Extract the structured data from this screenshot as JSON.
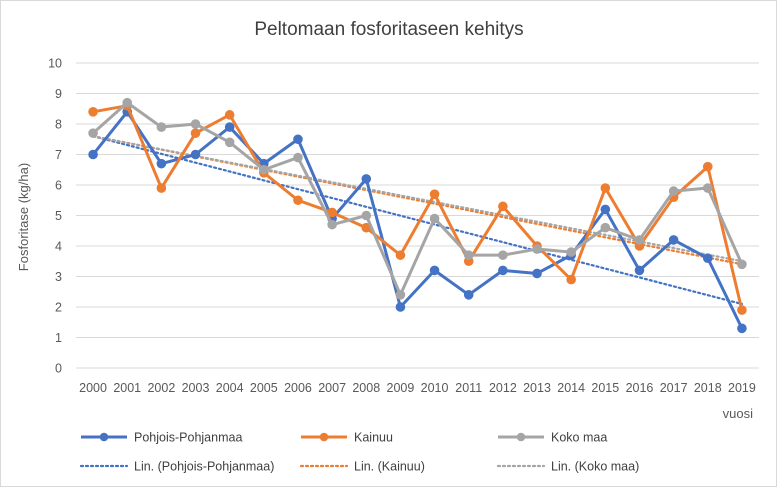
{
  "chart_data": {
    "type": "line",
    "title": "Peltomaan fosforitaseen kehitys",
    "xlabel": "vuosi",
    "ylabel": "Fosforitase (kg/ha)",
    "ylim": [
      0,
      10
    ],
    "yticks": [
      0,
      1,
      2,
      3,
      4,
      5,
      6,
      7,
      8,
      9,
      10
    ],
    "grid": true,
    "legend_position": "bottom",
    "categories": [
      "2000",
      "2001",
      "2002",
      "2003",
      "2004",
      "2005",
      "2006",
      "2007",
      "2008",
      "2009",
      "2010",
      "2011",
      "2012",
      "2013",
      "2014",
      "2015",
      "2016",
      "2017",
      "2018",
      "2019"
    ],
    "series": [
      {
        "name": "Pohjois-Pohjanmaa",
        "color": "#4472c4",
        "values": [
          7.0,
          8.4,
          6.7,
          7.0,
          7.9,
          6.7,
          7.5,
          4.9,
          6.2,
          2.0,
          3.2,
          2.4,
          3.2,
          3.1,
          3.7,
          5.2,
          3.2,
          4.2,
          3.6,
          1.3
        ]
      },
      {
        "name": "Kainuu",
        "color": "#ed7d31",
        "values": [
          8.4,
          8.6,
          5.9,
          7.7,
          8.3,
          6.4,
          5.5,
          5.1,
          4.6,
          3.7,
          5.7,
          3.5,
          5.3,
          4.0,
          2.9,
          5.9,
          4.0,
          5.6,
          6.6,
          1.9
        ]
      },
      {
        "name": "Koko maa",
        "color": "#a5a5a5",
        "values": [
          7.7,
          8.7,
          7.9,
          8.0,
          7.4,
          6.5,
          6.9,
          4.7,
          5.0,
          2.4,
          4.9,
          3.7,
          3.7,
          3.9,
          3.8,
          4.6,
          4.2,
          5.8,
          5.9,
          3.4
        ]
      }
    ],
    "trendlines": [
      {
        "name": "Lin. (Pohjois-Pohjanmaa)",
        "color": "#4472c4",
        "start": 7.6,
        "end": 2.1
      },
      {
        "name": "Lin. (Kainuu)",
        "color": "#ed7d31",
        "start": 7.6,
        "end": 3.4
      },
      {
        "name": "Lin. (Koko maa)",
        "color": "#a5a5a5",
        "start": 7.6,
        "end": 3.5
      }
    ]
  }
}
